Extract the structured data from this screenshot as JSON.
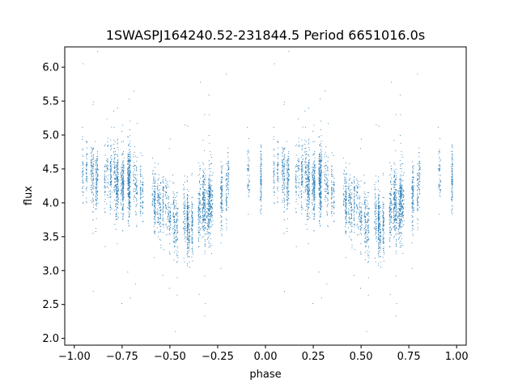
{
  "chart_data": {
    "type": "scatter",
    "title": "1SWASPJ164240.52-231844.5 Period 6651016.0s",
    "xlabel": "phase",
    "ylabel": "flux",
    "xlim": [
      -1.05,
      1.05
    ],
    "ylim": [
      1.9,
      6.3
    ],
    "x_ticks": [
      -1.0,
      -0.75,
      -0.5,
      -0.25,
      0.0,
      0.25,
      0.5,
      0.75,
      1.0
    ],
    "x_tick_labels": [
      "−1.00",
      "−0.75",
      "−0.50",
      "−0.25",
      "0.00",
      "0.25",
      "0.50",
      "0.75",
      "1.00"
    ],
    "y_ticks": [
      2.0,
      2.5,
      3.0,
      3.5,
      4.0,
      4.5,
      5.0,
      5.5,
      6.0
    ],
    "y_tick_labels": [
      "2.0",
      "2.5",
      "3.0",
      "3.5",
      "4.0",
      "4.5",
      "5.0",
      "5.5",
      "6.0"
    ],
    "grid": false,
    "marker_color": "#1f77b4",
    "series": [
      {
        "values_profile": {
          "phase": [
            0.0,
            0.05,
            0.1,
            0.15,
            0.2,
            0.25,
            0.3,
            0.35,
            0.4,
            0.45,
            0.5,
            0.55,
            0.6,
            0.65,
            0.7,
            0.75,
            0.8,
            0.85,
            0.9,
            0.95,
            1.0
          ],
          "flux": [
            4.4,
            4.35,
            4.3,
            4.3,
            4.3,
            4.3,
            4.25,
            4.2,
            4.15,
            4.0,
            3.85,
            3.75,
            3.7,
            3.8,
            3.95,
            4.1,
            4.25,
            4.3,
            4.35,
            4.4,
            4.4
          ]
        }
      }
    ]
  }
}
